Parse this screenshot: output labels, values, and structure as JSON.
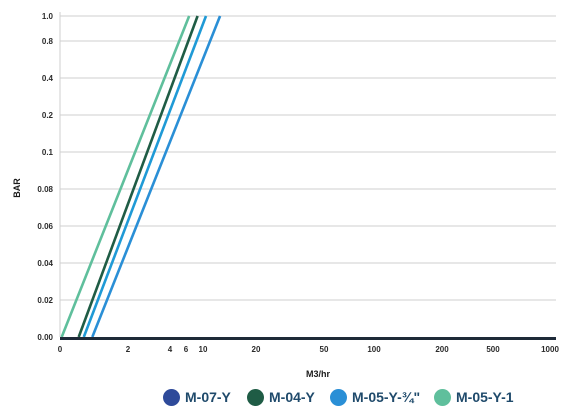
{
  "chart_data": {
    "type": "line",
    "xlabel": "M3/hr",
    "ylabel": "BAR",
    "x_tick_labels": [
      "0",
      "2",
      "4",
      "6",
      "10",
      "20",
      "50",
      "100",
      "200",
      "500",
      "1000"
    ],
    "y_tick_labels": [
      "0.00",
      "0.02",
      "0.04",
      "0.06",
      "0.08",
      "0.1",
      "0.2",
      "0.4",
      "0.8",
      "1.0"
    ],
    "grid": true,
    "legend_position": "bottom",
    "series": [
      {
        "name": "M-07-Y",
        "color": "#2e4a9a",
        "points": [
          [
            0,
            0.0
          ],
          [
            0,
            0.0
          ]
        ]
      },
      {
        "name": "M-04-Y",
        "color": "#1f5c45",
        "points": [
          [
            0.55,
            0.0
          ],
          [
            8.5,
            1.0
          ]
        ]
      },
      {
        "name": "M-05-Y-¾\"",
        "color": "#2a8fd6",
        "points": [
          [
            0.95,
            0.0
          ],
          [
            12.5,
            1.0
          ]
        ]
      },
      {
        "name": "M-05-Y-1",
        "color": "#5fbf9c",
        "points": [
          [
            0.05,
            0.0
          ],
          [
            6.6,
            1.0
          ]
        ]
      }
    ],
    "extra_series": [
      {
        "color": "#1f9ad6",
        "points": [
          [
            0.7,
            0.0
          ],
          [
            10.4,
            1.0
          ]
        ]
      }
    ]
  },
  "legend": {
    "items": [
      {
        "label": "M-07-Y",
        "color": "#2e4a9a"
      },
      {
        "label": "M-04-Y",
        "color": "#1f5c45"
      },
      {
        "label": "M-05-Y-¾\"",
        "color": "#2a8fd6"
      },
      {
        "label": "M-05-Y-1",
        "color": "#5fbf9c"
      }
    ]
  }
}
